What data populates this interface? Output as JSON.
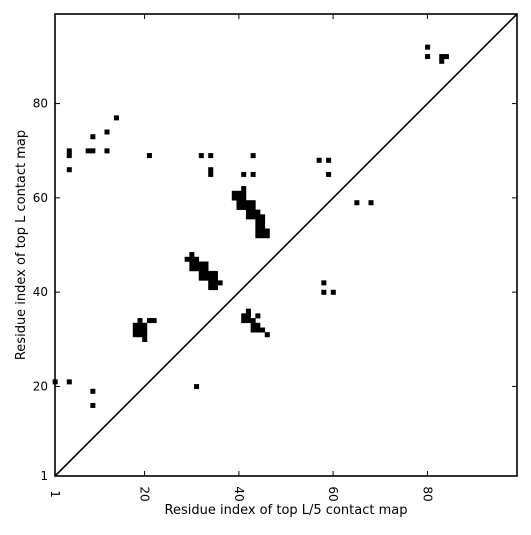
{
  "chart_data": {
    "type": "scatter",
    "title": "",
    "xlabel": "Residue index of top L/5 contact map",
    "ylabel": "Residue index of top L contact map",
    "xlim": [
      1,
      99
    ],
    "ylim": [
      1,
      99
    ],
    "x_ticks": [
      1,
      20,
      40,
      60,
      80
    ],
    "y_ticks": [
      1,
      20,
      40,
      60,
      80
    ],
    "x_tick_labels": [
      "1",
      "20",
      "40",
      "60",
      "80"
    ],
    "y_tick_labels": [
      "1",
      "20",
      "40",
      "60",
      "80"
    ],
    "grid": false,
    "diagonal_line": true,
    "marker_color": "#000000",
    "contacts": [
      [
        1,
        21
      ],
      [
        4,
        21
      ],
      [
        9,
        19
      ],
      [
        9,
        16
      ],
      [
        4,
        66
      ],
      [
        4,
        69
      ],
      [
        4,
        70
      ],
      [
        9,
        73
      ],
      [
        8,
        70
      ],
      [
        9,
        70
      ],
      [
        12,
        74
      ],
      [
        12,
        70
      ],
      [
        14,
        77
      ],
      [
        21,
        69
      ],
      [
        18,
        31
      ],
      [
        19,
        31
      ],
      [
        20,
        31
      ],
      [
        18,
        32
      ],
      [
        19,
        32
      ],
      [
        20,
        32
      ],
      [
        18,
        33
      ],
      [
        19,
        33
      ],
      [
        20,
        33
      ],
      [
        19,
        34
      ],
      [
        20,
        30
      ],
      [
        21,
        34
      ],
      [
        22,
        34
      ],
      [
        29,
        47
      ],
      [
        30,
        47
      ],
      [
        30,
        48
      ],
      [
        31,
        47
      ],
      [
        30,
        46
      ],
      [
        31,
        46
      ],
      [
        32,
        46
      ],
      [
        33,
        46
      ],
      [
        30,
        45
      ],
      [
        31,
        45
      ],
      [
        32,
        45
      ],
      [
        33,
        45
      ],
      [
        32,
        44
      ],
      [
        33,
        44
      ],
      [
        34,
        44
      ],
      [
        35,
        44
      ],
      [
        32,
        43
      ],
      [
        33,
        43
      ],
      [
        34,
        43
      ],
      [
        35,
        43
      ],
      [
        34,
        42
      ],
      [
        35,
        42
      ],
      [
        36,
        42
      ],
      [
        34,
        41
      ],
      [
        35,
        41
      ],
      [
        31,
        20
      ],
      [
        32,
        69
      ],
      [
        34,
        69
      ],
      [
        34,
        65
      ],
      [
        34,
        66
      ],
      [
        41,
        34
      ],
      [
        42,
        34
      ],
      [
        41,
        35
      ],
      [
        42,
        35
      ],
      [
        42,
        36
      ],
      [
        43,
        34
      ],
      [
        43,
        33
      ],
      [
        44,
        33
      ],
      [
        43,
        32
      ],
      [
        44,
        32
      ],
      [
        45,
        32
      ],
      [
        44,
        35
      ],
      [
        46,
        31
      ],
      [
        40,
        61
      ],
      [
        41,
        61
      ],
      [
        39,
        61
      ],
      [
        39,
        60
      ],
      [
        40,
        60
      ],
      [
        41,
        60
      ],
      [
        41,
        62
      ],
      [
        40,
        59
      ],
      [
        41,
        59
      ],
      [
        42,
        59
      ],
      [
        43,
        59
      ],
      [
        40,
        58
      ],
      [
        41,
        58
      ],
      [
        42,
        58
      ],
      [
        43,
        58
      ],
      [
        42,
        57
      ],
      [
        43,
        57
      ],
      [
        44,
        57
      ],
      [
        42,
        56
      ],
      [
        43,
        56
      ],
      [
        44,
        56
      ],
      [
        45,
        56
      ],
      [
        44,
        55
      ],
      [
        45,
        55
      ],
      [
        44,
        54
      ],
      [
        45,
        54
      ],
      [
        44,
        53
      ],
      [
        45,
        53
      ],
      [
        46,
        53
      ],
      [
        44,
        52
      ],
      [
        45,
        52
      ],
      [
        46,
        52
      ],
      [
        41,
        65
      ],
      [
        43,
        65
      ],
      [
        43,
        69
      ],
      [
        57,
        68
      ],
      [
        59,
        68
      ],
      [
        59,
        65
      ],
      [
        58,
        42
      ],
      [
        58,
        40
      ],
      [
        60,
        40
      ],
      [
        65,
        59
      ],
      [
        68,
        59
      ],
      [
        80,
        92
      ],
      [
        80,
        90
      ],
      [
        83,
        90
      ],
      [
        84,
        90
      ],
      [
        83,
        89
      ]
    ]
  }
}
